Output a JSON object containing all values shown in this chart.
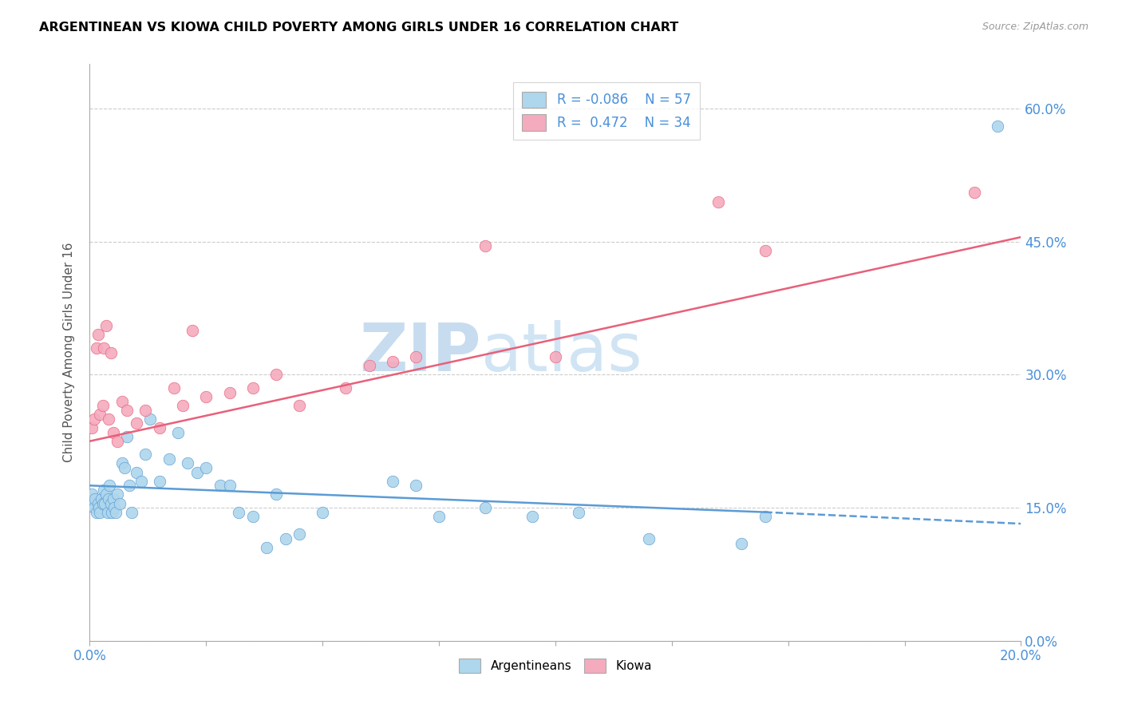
{
  "title": "ARGENTINEAN VS KIOWA CHILD POVERTY AMONG GIRLS UNDER 16 CORRELATION CHART",
  "source": "Source: ZipAtlas.com",
  "ylabel": "Child Poverty Among Girls Under 16",
  "ytick_vals": [
    0,
    15,
    30,
    45,
    60
  ],
  "xlim": [
    0,
    20
  ],
  "ylim": [
    0,
    65
  ],
  "legend_r1": "R = -0.086",
  "legend_n1": "N = 57",
  "legend_r2": "R =  0.472",
  "legend_n2": "N = 34",
  "blue_color": "#AED6EC",
  "pink_color": "#F4ABBE",
  "line_blue": "#5B9BD5",
  "line_pink": "#E8607A",
  "watermark_color": "#C8DCF0",
  "blue_scatter_x": [
    0.05,
    0.08,
    0.1,
    0.12,
    0.15,
    0.18,
    0.2,
    0.22,
    0.25,
    0.28,
    0.3,
    0.32,
    0.35,
    0.38,
    0.4,
    0.42,
    0.45,
    0.48,
    0.5,
    0.52,
    0.55,
    0.6,
    0.65,
    0.7,
    0.75,
    0.8,
    0.85,
    0.9,
    1.0,
    1.1,
    1.2,
    1.3,
    1.5,
    1.7,
    1.9,
    2.1,
    2.3,
    2.5,
    2.8,
    3.0,
    3.2,
    3.5,
    3.8,
    4.0,
    4.2,
    4.5,
    5.0,
    6.5,
    7.0,
    7.5,
    8.5,
    9.5,
    10.5,
    12.0,
    14.0,
    14.5,
    19.5
  ],
  "blue_scatter_y": [
    16.5,
    15.5,
    15.0,
    16.0,
    14.5,
    15.5,
    15.0,
    14.5,
    16.0,
    15.5,
    17.0,
    15.5,
    16.5,
    14.5,
    16.0,
    17.5,
    15.5,
    14.5,
    16.0,
    15.0,
    14.5,
    16.5,
    15.5,
    20.0,
    19.5,
    23.0,
    17.5,
    14.5,
    19.0,
    18.0,
    21.0,
    25.0,
    18.0,
    20.5,
    23.5,
    20.0,
    19.0,
    19.5,
    17.5,
    17.5,
    14.5,
    14.0,
    10.5,
    16.5,
    11.5,
    12.0,
    14.5,
    18.0,
    17.5,
    14.0,
    15.0,
    14.0,
    14.5,
    11.5,
    11.0,
    14.0,
    58.0
  ],
  "pink_scatter_x": [
    0.05,
    0.1,
    0.15,
    0.18,
    0.22,
    0.28,
    0.35,
    0.4,
    0.5,
    0.6,
    0.7,
    0.8,
    1.0,
    1.2,
    1.5,
    1.8,
    2.0,
    2.5,
    3.0,
    3.5,
    4.5,
    5.5,
    6.5,
    7.0,
    8.5,
    10.0,
    13.5,
    14.5,
    19.0,
    0.3,
    0.45,
    2.2,
    4.0,
    6.0
  ],
  "pink_scatter_y": [
    24.0,
    25.0,
    33.0,
    34.5,
    25.5,
    26.5,
    35.5,
    25.0,
    23.5,
    22.5,
    27.0,
    26.0,
    24.5,
    26.0,
    24.0,
    28.5,
    26.5,
    27.5,
    28.0,
    28.5,
    26.5,
    28.5,
    31.5,
    32.0,
    44.5,
    32.0,
    49.5,
    44.0,
    50.5,
    33.0,
    32.5,
    35.0,
    30.0,
    31.0
  ],
  "blue_line_x0": 0,
  "blue_line_y0": 17.5,
  "blue_line_x1": 14.5,
  "blue_line_y1": 14.5,
  "blue_dash_x0": 14.5,
  "blue_dash_y0": 14.5,
  "blue_dash_x1": 20,
  "blue_dash_y1": 13.2,
  "pink_line_x0": 0,
  "pink_line_y0": 22.5,
  "pink_line_x1": 20,
  "pink_line_y1": 45.5
}
